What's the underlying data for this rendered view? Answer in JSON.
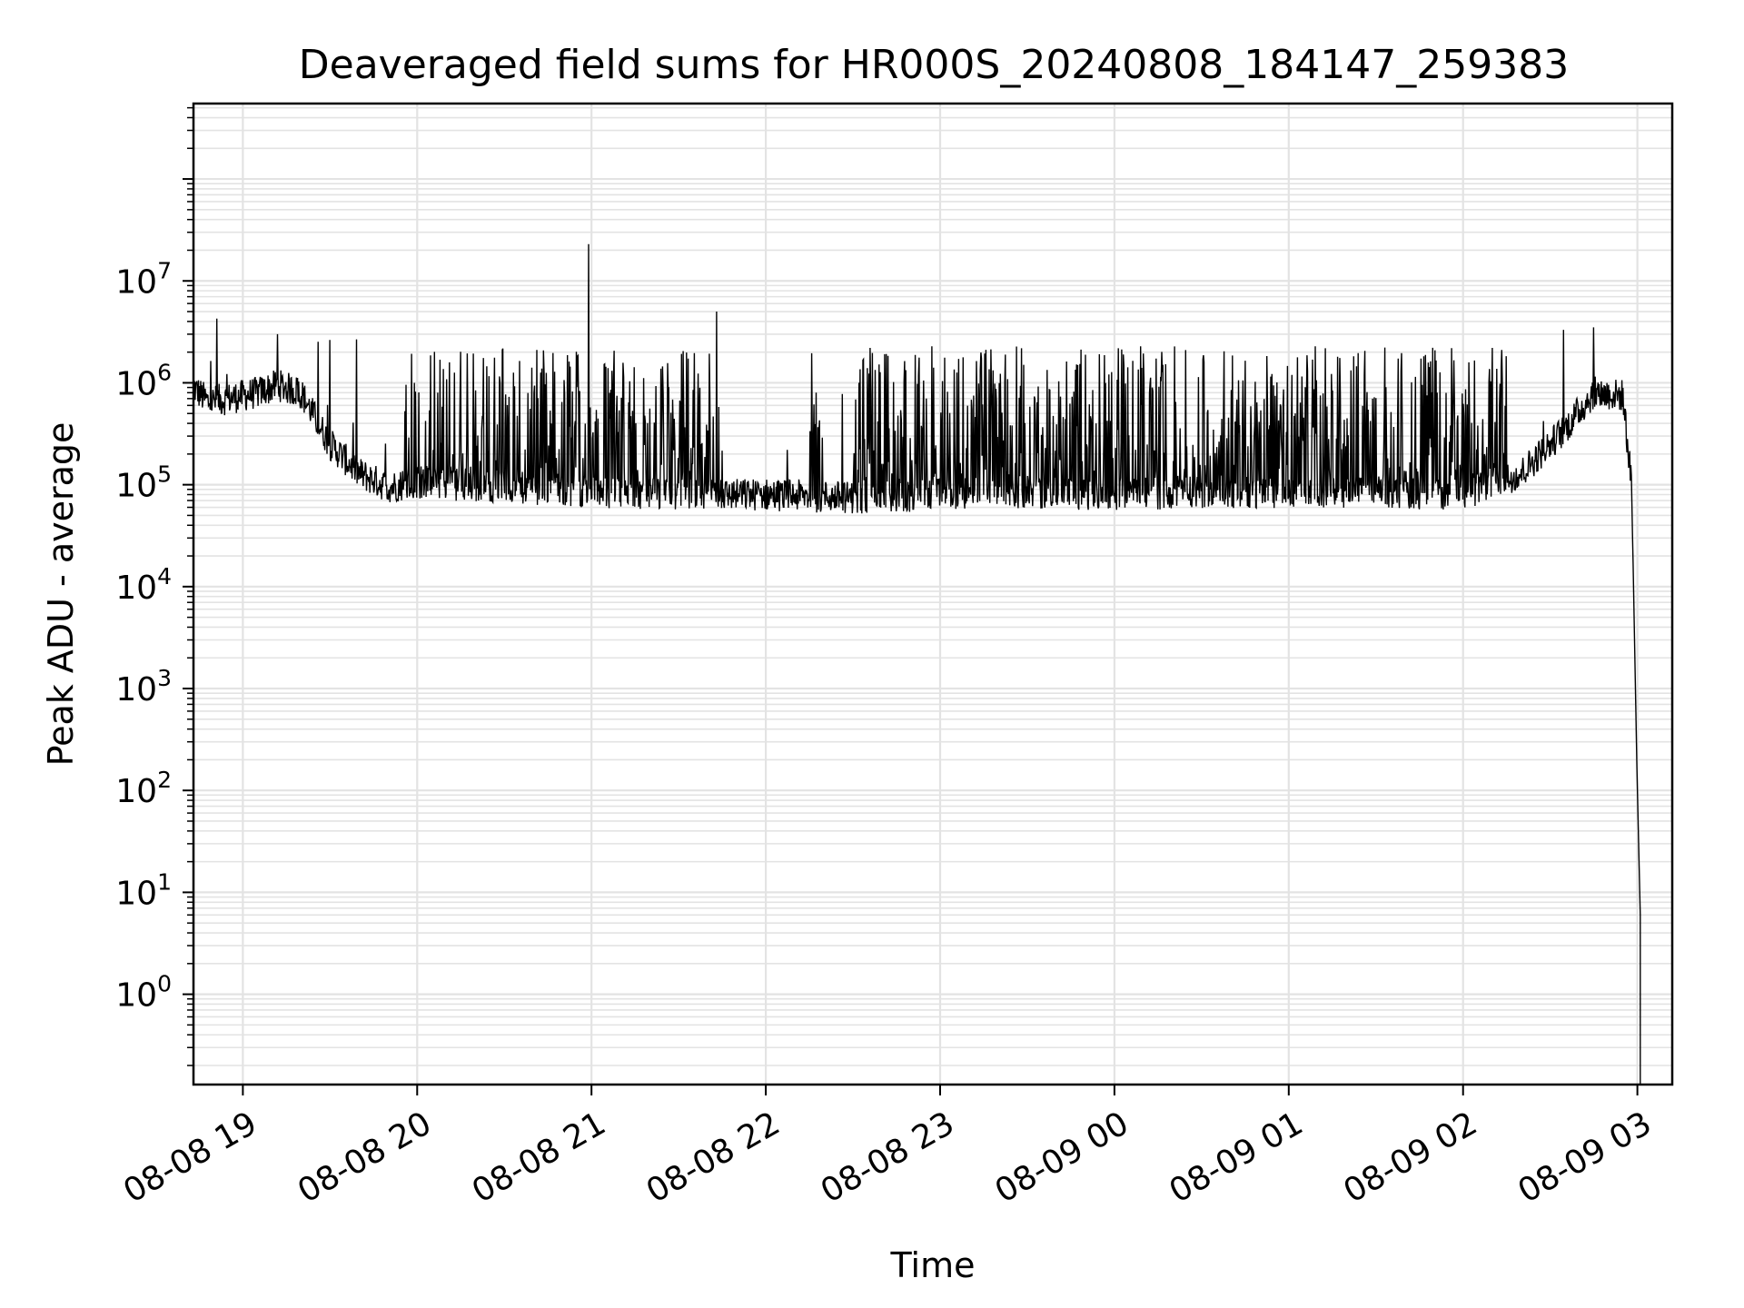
{
  "chart_data": {
    "type": "line",
    "title": "Deaveraged field sums for HR000S_20240808_184147_259383",
    "xlabel": "Time",
    "ylabel": "Peak ADU - average",
    "yscale": "log",
    "ylim": [
      0.13,
      550000000
    ],
    "xlim": [
      "2024-08-08 18:43",
      "2024-08-09 03:12"
    ],
    "grid": true,
    "line_color": "#000000",
    "grid_color": "#e3e3e3",
    "x_ticks": [
      {
        "value": "2024-08-08 19:00",
        "label": "08-08 19"
      },
      {
        "value": "2024-08-08 20:00",
        "label": "08-08 20"
      },
      {
        "value": "2024-08-08 21:00",
        "label": "08-08 21"
      },
      {
        "value": "2024-08-08 22:00",
        "label": "08-08 22"
      },
      {
        "value": "2024-08-08 23:00",
        "label": "08-08 23"
      },
      {
        "value": "2024-08-09 00:00",
        "label": "08-09 00"
      },
      {
        "value": "2024-08-09 01:00",
        "label": "08-09 01"
      },
      {
        "value": "2024-08-09 02:00",
        "label": "08-09 02"
      },
      {
        "value": "2024-08-09 03:00",
        "label": "08-09 03"
      }
    ],
    "y_ticks": [
      {
        "value": 1,
        "base": "10",
        "exp": "0"
      },
      {
        "value": 10,
        "base": "10",
        "exp": "1"
      },
      {
        "value": 100,
        "base": "10",
        "exp": "2"
      },
      {
        "value": 1000,
        "base": "10",
        "exp": "3"
      },
      {
        "value": 10000,
        "base": "10",
        "exp": "4"
      },
      {
        "value": 100000,
        "base": "10",
        "exp": "5"
      },
      {
        "value": 1000000,
        "base": "10",
        "exp": "6"
      },
      {
        "value": 10000000,
        "base": "10",
        "exp": "7"
      }
    ],
    "series": [
      {
        "type": "baseline",
        "note_points": [
          [
            "2024-08-08 18:43",
            900000
          ],
          [
            "2024-08-08 18:48",
            650000
          ],
          [
            "2024-08-08 18:55",
            700000
          ],
          [
            "2024-08-08 19:05",
            800000
          ],
          [
            "2024-08-08 19:12",
            950000
          ],
          [
            "2024-08-08 19:20",
            800000
          ],
          [
            "2024-08-08 19:30",
            250000
          ],
          [
            "2024-08-08 19:40",
            130000
          ],
          [
            "2024-08-08 19:50",
            95000
          ],
          [
            "2024-08-08 20:00",
            105000
          ],
          [
            "2024-08-08 20:30",
            95000
          ],
          [
            "2024-08-08 21:00",
            85000
          ],
          [
            "2024-08-08 21:30",
            80000
          ],
          [
            "2024-08-08 22:00",
            80000
          ],
          [
            "2024-08-08 22:30",
            75000
          ],
          [
            "2024-08-08 23:00",
            80000
          ],
          [
            "2024-08-08 23:30",
            85000
          ],
          [
            "2024-08-09 00:00",
            80000
          ],
          [
            "2024-08-09 00:30",
            85000
          ],
          [
            "2024-08-09 01:00",
            85000
          ],
          [
            "2024-08-09 01:30",
            85000
          ],
          [
            "2024-08-09 02:00",
            80000
          ],
          [
            "2024-08-09 02:20",
            130000
          ],
          [
            "2024-08-09 02:35",
            350000
          ],
          [
            "2024-08-09 02:45",
            800000
          ],
          [
            "2024-08-09 02:55",
            750000
          ],
          [
            "2024-08-09 02:58",
            100000
          ],
          [
            "2024-08-09 03:00",
            100
          ],
          [
            "2024-08-09 03:01",
            6
          ]
        ]
      }
    ],
    "bursts": [
      {
        "start": "2024-08-08 19:55",
        "end": "2024-08-08 21:45",
        "peak": 2200000
      },
      {
        "start": "2024-08-08 22:15",
        "end": "2024-08-08 22:20",
        "peak": 2100000
      },
      {
        "start": "2024-08-08 22:30",
        "end": "2024-08-09 02:15",
        "peak": 2300000
      }
    ],
    "spikes": [
      {
        "time": "2024-08-08 20:59",
        "value": 23000000
      },
      {
        "time": "2024-08-08 21:43",
        "value": 5000000
      },
      {
        "time": "2024-08-08 19:12",
        "value": 3000000
      },
      {
        "time": "2024-08-09 02:45",
        "value": 3500000
      }
    ]
  }
}
